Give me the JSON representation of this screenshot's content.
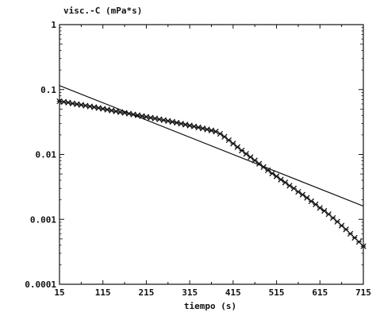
{
  "chart_data": {
    "type": "scatter",
    "title": "",
    "ylabel": "visc.-C (mPa*s)",
    "xlabel": "tiempo (s)",
    "x_ticks": [
      "15",
      "115",
      "215",
      "315",
      "415",
      "515",
      "615",
      "715"
    ],
    "y_ticks": [
      "1",
      "0.1",
      "0.01",
      "0.001",
      "0.0001"
    ],
    "xlim": [
      15,
      715
    ],
    "ylim": [
      0.0001,
      1
    ],
    "yscale": "log",
    "grid": false,
    "marker": "x",
    "series": [
      {
        "type": "scatter",
        "x": [
          15,
          25,
          35,
          45,
          55,
          65,
          75,
          85,
          95,
          105,
          115,
          125,
          135,
          145,
          155,
          165,
          175,
          185,
          195,
          205,
          215,
          225,
          235,
          245,
          255,
          265,
          275,
          285,
          295,
          305,
          315,
          325,
          335,
          345,
          355,
          365,
          375,
          385,
          395,
          405,
          415,
          425,
          435,
          445,
          455,
          465,
          475,
          485,
          495,
          505,
          515,
          525,
          535,
          545,
          555,
          565,
          575,
          585,
          595,
          605,
          615,
          625,
          635,
          645,
          655,
          665,
          675,
          685,
          695,
          705,
          715
        ],
        "y": [
          0.066,
          0.0645,
          0.063,
          0.061,
          0.0595,
          0.058,
          0.0565,
          0.055,
          0.0535,
          0.052,
          0.0505,
          0.049,
          0.0475,
          0.0462,
          0.0449,
          0.0437,
          0.0425,
          0.0413,
          0.0401,
          0.039,
          0.0379,
          0.0368,
          0.0358,
          0.0348,
          0.0338,
          0.0328,
          0.0318,
          0.0308,
          0.0298,
          0.0288,
          0.0279,
          0.027,
          0.0261,
          0.0252,
          0.0243,
          0.0234,
          0.0225,
          0.0208,
          0.0187,
          0.0166,
          0.0147,
          0.013,
          0.0115,
          0.0102,
          0.0091,
          0.0081,
          0.0072,
          0.0064,
          0.0057,
          0.0051,
          0.0046,
          0.0041,
          0.0037,
          0.0033,
          0.003,
          0.00265,
          0.0024,
          0.00215,
          0.0019,
          0.0017,
          0.0015,
          0.00135,
          0.0012,
          0.00105,
          0.00092,
          0.0008,
          0.0007,
          0.0006,
          0.00052,
          0.00045,
          0.000385
        ]
      },
      {
        "type": "line",
        "x": [
          15,
          715
        ],
        "y": [
          0.115,
          0.0016
        ]
      }
    ]
  }
}
